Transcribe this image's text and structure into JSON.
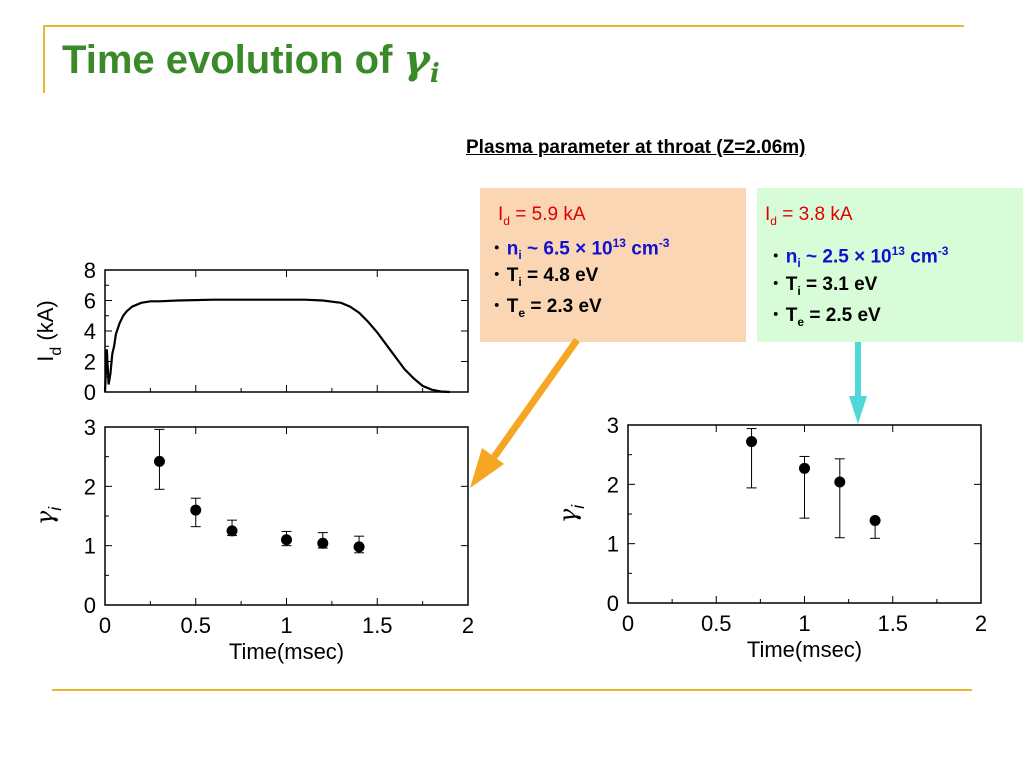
{
  "slide": {
    "title_text": "Time evolution of ",
    "title_symbol": "γ",
    "title_sub": "i",
    "subheading": "Plasma parameter at throat (Z=2.06m)"
  },
  "case1": {
    "current": {
      "label": "I",
      "sub": "d",
      "value": " = 5.9 kA"
    },
    "density": {
      "bullet": "･",
      "label": "n",
      "sub": "i",
      "value": " ~ 6.5 × 10",
      "exp": "13",
      "unit": " cm",
      "unit_exp": "-3"
    },
    "ion_temp": {
      "bullet": "･",
      "label": "T",
      "sub": "i",
      "value": " = 4.8 eV"
    },
    "electron_temp": {
      "bullet": "･",
      "label": "T",
      "sub": "e",
      "value": " = 2.3 eV"
    },
    "color": "#fbd6b4"
  },
  "case2": {
    "current": {
      "label": "I",
      "sub": "d",
      "value": " = 3.8 kA"
    },
    "density": {
      "bullet": "･",
      "label": "n",
      "sub": "i",
      "value": " ~ 2.5 × 10",
      "exp": "13",
      "unit": " cm",
      "unit_exp": "-3"
    },
    "ion_temp": {
      "bullet": "･",
      "label": "T",
      "sub": "i",
      "value": " = 3.1 eV"
    },
    "electron_temp": {
      "bullet": "･",
      "label": "T",
      "sub": "e",
      "value": " = 2.5 eV"
    },
    "color": "#d8fcd8"
  },
  "chart_data": [
    {
      "type": "line",
      "ylabel": "I",
      "ylabel_sub": "d",
      "ylabel_unit": " (kA)",
      "xlim": [
        0,
        2
      ],
      "ylim": [
        0,
        8
      ],
      "yticks": [
        "0",
        "2",
        "4",
        "6",
        "8"
      ],
      "series": [
        {
          "x": [
            0.0,
            0.01,
            0.02,
            0.03,
            0.04,
            0.05,
            0.06,
            0.08,
            0.1,
            0.12,
            0.15,
            0.2,
            0.25,
            0.3,
            0.4,
            0.6,
            0.8,
            1.0,
            1.1,
            1.2,
            1.3,
            1.35,
            1.4,
            1.45,
            1.5,
            1.55,
            1.6,
            1.65,
            1.7,
            1.75,
            1.8,
            1.85,
            1.9
          ],
          "y": [
            0.0,
            2.8,
            0.5,
            1.2,
            2.5,
            3.0,
            3.8,
            4.5,
            5.0,
            5.3,
            5.6,
            5.85,
            5.95,
            5.95,
            6.0,
            6.05,
            6.05,
            6.05,
            6.05,
            6.0,
            5.85,
            5.6,
            5.2,
            4.6,
            3.9,
            3.1,
            2.3,
            1.5,
            0.9,
            0.4,
            0.15,
            0.03,
            0.0
          ]
        }
      ],
      "color": "#000000"
    },
    {
      "type": "scatter",
      "ylabel": "γ",
      "ylabel_sub": "i",
      "xlim": [
        0,
        2
      ],
      "ylim": [
        0,
        3
      ],
      "yticks": [
        "0",
        "1",
        "2",
        "3"
      ],
      "xticks": [
        "0",
        "0.5",
        "1",
        "1.5",
        "2"
      ],
      "xlabel": "Time(msec)",
      "x": [
        0.3,
        0.5,
        0.7,
        1.0,
        1.2,
        1.4
      ],
      "y": [
        2.42,
        1.6,
        1.25,
        1.1,
        1.04,
        0.98
      ],
      "err_low": [
        1.95,
        1.32,
        1.17,
        1.0,
        0.96,
        0.88
      ],
      "err_high": [
        2.96,
        1.8,
        1.43,
        1.24,
        1.22,
        1.16
      ],
      "arrow_color": "#f5a623"
    },
    {
      "type": "scatter",
      "ylabel": "γ",
      "ylabel_sub": "i",
      "xlim": [
        0,
        2
      ],
      "ylim": [
        0,
        3
      ],
      "yticks": [
        "0",
        "1",
        "2",
        "3"
      ],
      "xticks": [
        "0",
        "0.5",
        "1",
        "1.5",
        "2"
      ],
      "xlabel": "Time(msec)",
      "x": [
        0.7,
        1.0,
        1.2,
        1.4
      ],
      "y": [
        2.72,
        2.27,
        2.04,
        1.39
      ],
      "err_low": [
        1.94,
        1.43,
        1.1,
        1.09
      ],
      "err_high": [
        2.94,
        2.47,
        2.43,
        1.39
      ],
      "arrow_color": "#50d8d8"
    }
  ]
}
